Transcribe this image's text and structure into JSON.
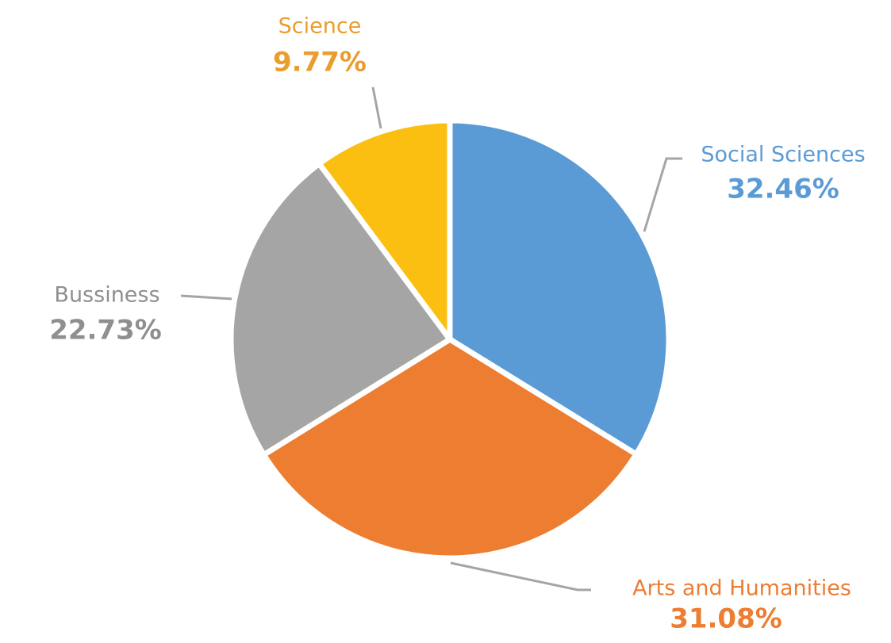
{
  "chart_data": {
    "type": "pie",
    "categories": [
      "Social Sciences",
      "Arts and Humanities",
      "Bussiness",
      "Science"
    ],
    "values": [
      32.46,
      31.08,
      22.73,
      9.77
    ],
    "value_labels": [
      "32.46%",
      "31.08%",
      "22.73%",
      "9.77%"
    ],
    "colors": [
      "#5b9bd5",
      "#ed7d31",
      "#a5a5a5",
      "#fbbf12"
    ],
    "label_colors": [
      "#5b9bd5",
      "#ed7d31",
      "#8f8f8f",
      "#e99d2c"
    ]
  }
}
